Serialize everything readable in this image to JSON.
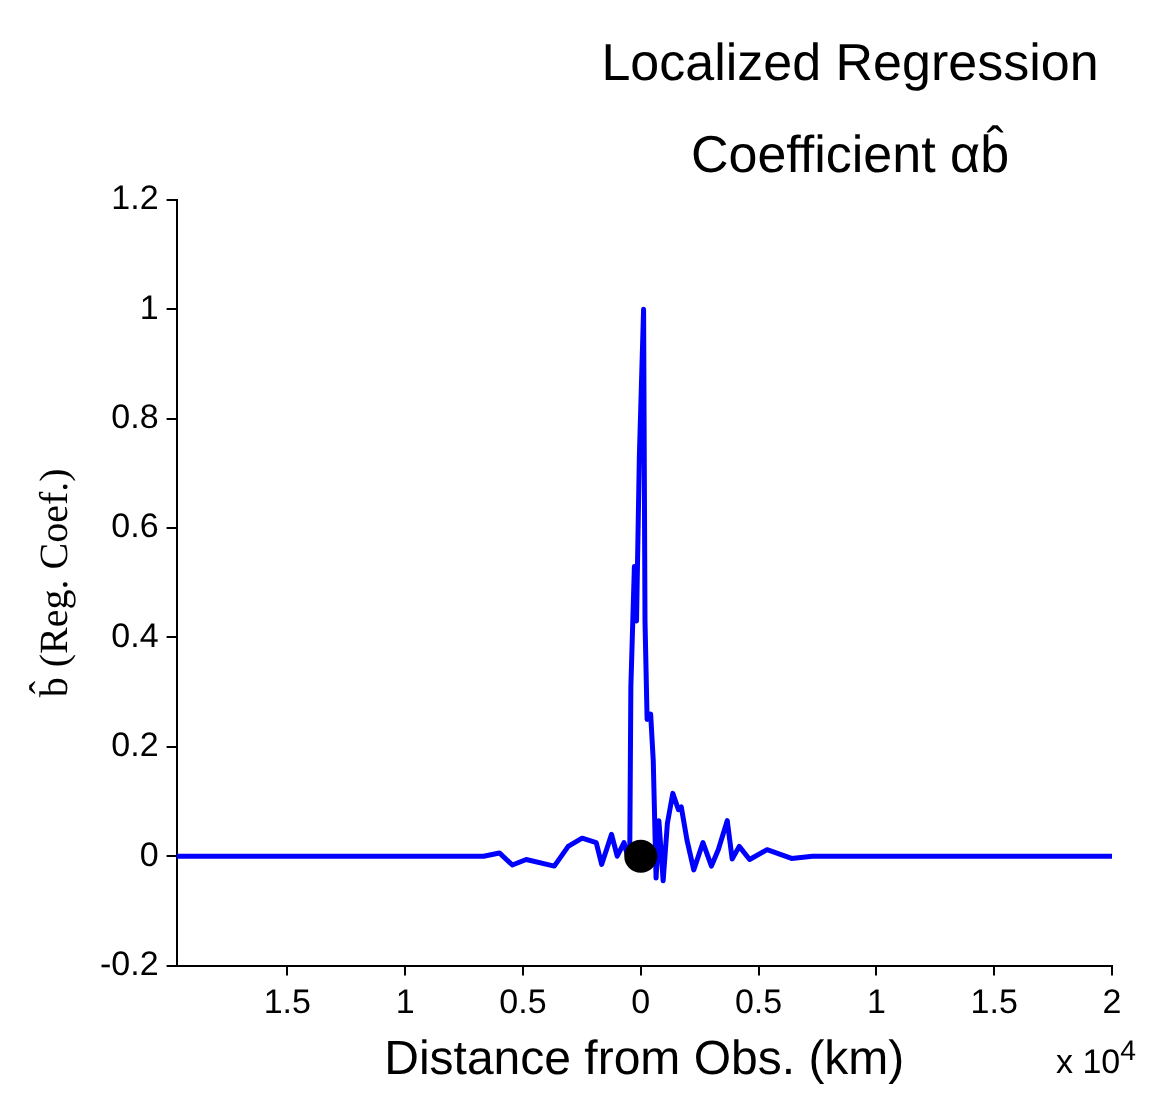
{
  "chart_data": {
    "type": "line",
    "title": "Localized Regression Coefficient αb̂",
    "xlabel": "Distance from Obs. (km)",
    "ylabel": "b̂ (Reg. Coef.)",
    "annotations": [
      "x 10$^{4}$"
    ],
    "xlim": [
      -1.97,
      2
    ],
    "ylim": [
      -0.2,
      1.2
    ],
    "xticks": [
      {
        "value": -1.5,
        "label": "1.5"
      },
      {
        "value": -1,
        "label": "1"
      },
      {
        "value": -0.5,
        "label": "0.5"
      },
      0,
      0.5,
      1,
      1.5,
      2
    ],
    "yticks": [
      -0.2,
      0,
      0.2,
      0.4,
      0.6,
      0.8,
      1,
      1.2
    ],
    "grid": false,
    "legend": false,
    "series": [
      {
        "type": "line",
        "color": "#0000ff",
        "marker": "none",
        "line_style": "solid",
        "x": [
          -1.97,
          -0.667,
          -0.6,
          -0.545,
          -0.486,
          -0.367,
          -0.308,
          -0.249,
          -0.189,
          -0.166,
          -0.124,
          -0.1,
          -0.071,
          -0.047,
          -0.042,
          -0.027,
          -0.018,
          -0.006,
          0.012,
          0.018,
          0.027,
          0.042,
          0.053,
          0.065,
          0.077,
          0.095,
          0.113,
          0.136,
          0.16,
          0.172,
          0.196,
          0.225,
          0.264,
          0.3,
          0.329,
          0.367,
          0.388,
          0.418,
          0.462,
          0.536,
          0.64,
          0.729,
          2
        ],
        "values": [
          0,
          0,
          0.006,
          -0.016,
          -0.006,
          -0.018,
          0.018,
          0.033,
          0.025,
          -0.015,
          0.04,
          0,
          0.025,
          -0.015,
          0.31,
          0.53,
          0.43,
          0.73,
          1,
          0.43,
          0.25,
          0.26,
          0.175,
          -0.04,
          0.065,
          -0.045,
          0.06,
          0.115,
          0.085,
          0.09,
          0.03,
          -0.025,
          0.025,
          -0.018,
          0.012,
          0.065,
          -0.005,
          0.018,
          -0.006,
          0.012,
          -0.004,
          0,
          0
        ]
      },
      {
        "type": "scatter",
        "color": "#000000",
        "marker": "circle",
        "x": [
          0
        ],
        "values": [
          0
        ]
      }
    ]
  }
}
